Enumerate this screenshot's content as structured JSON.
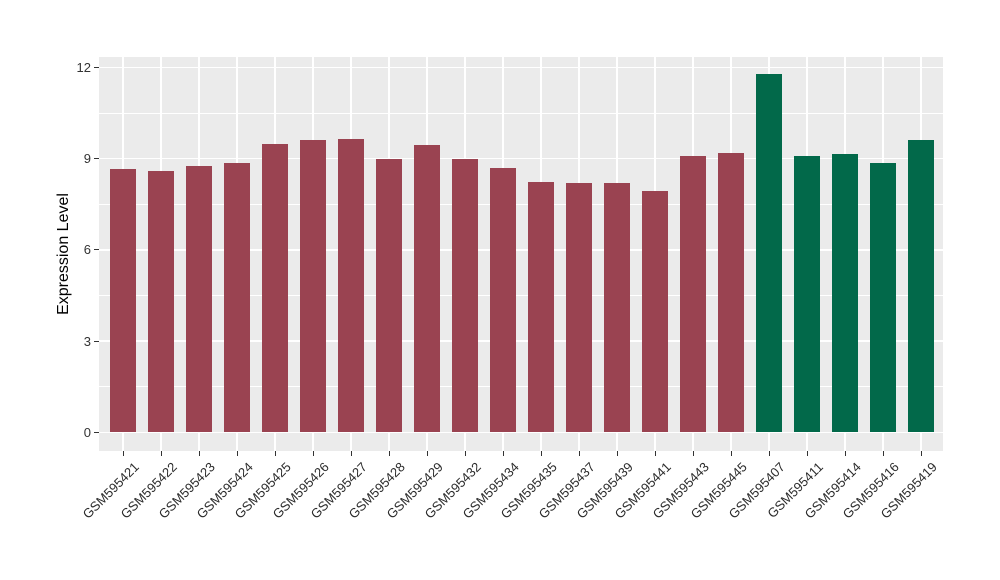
{
  "chart_data": {
    "type": "bar",
    "title": "",
    "xlabel": "",
    "ylabel": "Expression Level",
    "ylim": [
      0,
      12.3
    ],
    "yticks": [
      0,
      3,
      6,
      9,
      12
    ],
    "yticks_minor": [
      1.5,
      4.5,
      7.5,
      10.5
    ],
    "grid": true,
    "legend_position": "none",
    "panel_background": "#EBEBEB",
    "grid_color": "#FFFFFF",
    "categories": [
      "GSM595421",
      "GSM595422",
      "GSM595423",
      "GSM595424",
      "GSM595425",
      "GSM595426",
      "GSM595427",
      "GSM595428",
      "GSM595429",
      "GSM595432",
      "GSM595434",
      "GSM595435",
      "GSM595437",
      "GSM595439",
      "GSM595441",
      "GSM595443",
      "GSM595445",
      "GSM595407",
      "GSM595411",
      "GSM595414",
      "GSM595416",
      "GSM595419"
    ],
    "values": [
      8.65,
      8.6,
      8.75,
      8.85,
      9.5,
      9.6,
      9.65,
      9.0,
      9.45,
      9.0,
      8.7,
      8.25,
      8.2,
      8.2,
      7.95,
      9.1,
      9.2,
      11.8,
      9.1,
      9.15,
      8.85,
      9.6
    ],
    "groups": [
      "group1",
      "group1",
      "group1",
      "group1",
      "group1",
      "group1",
      "group1",
      "group1",
      "group1",
      "group1",
      "group1",
      "group1",
      "group1",
      "group1",
      "group1",
      "group1",
      "group1",
      "group2",
      "group2",
      "group2",
      "group2",
      "group2"
    ],
    "group_colors": {
      "group1": "#9A4351",
      "group2": "#02694A"
    }
  }
}
